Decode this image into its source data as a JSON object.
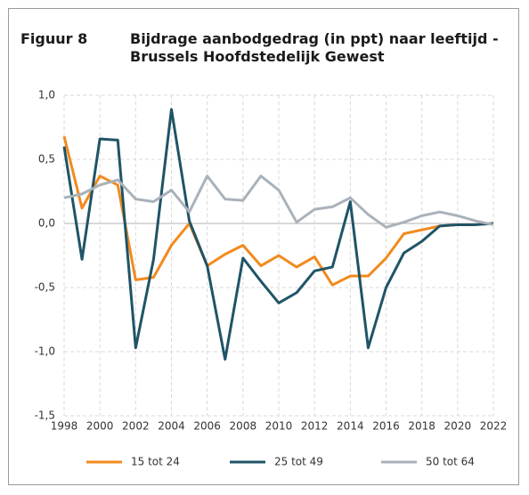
{
  "chart_data": {
    "type": "line",
    "figure_label": "Figuur 8",
    "title": "Bijdrage aanbodgedrag (in ppt) naar leeftijd - Brussels Hoofdstedelijk Gewest",
    "x": [
      1998,
      1999,
      2000,
      2001,
      2002,
      2003,
      2004,
      2005,
      2006,
      2007,
      2008,
      2009,
      2010,
      2011,
      2012,
      2013,
      2014,
      2015,
      2016,
      2017,
      2018,
      2019,
      2020,
      2021,
      2022
    ],
    "xlim": [
      1998,
      2022
    ],
    "xticks": [
      1998,
      2000,
      2002,
      2004,
      2006,
      2008,
      2010,
      2012,
      2014,
      2016,
      2018,
      2020,
      2022
    ],
    "ylim": [
      -1.5,
      1.0
    ],
    "yticks": [
      {
        "value": -1.5,
        "label": "-1,5"
      },
      {
        "value": -1.0,
        "label": "-1,0"
      },
      {
        "value": -0.5,
        "label": "-0,5"
      },
      {
        "value": 0,
        "label": "0,0"
      },
      {
        "value": 0.5,
        "label": "0,5"
      },
      {
        "value": 1.0,
        "label": "1,0"
      }
    ],
    "grid": true,
    "legend": "bottom",
    "series": [
      {
        "name": "15 tot 24",
        "color": "#f28a1e",
        "values": [
          0.68,
          0.12,
          0.37,
          0.3,
          -0.44,
          -0.42,
          -0.17,
          0.0,
          -0.33,
          -0.24,
          -0.17,
          -0.33,
          -0.25,
          -0.34,
          -0.26,
          -0.48,
          -0.41,
          -0.41,
          -0.27,
          -0.08,
          -0.05,
          -0.02,
          -0.01,
          -0.01,
          0.0
        ]
      },
      {
        "name": "25 tot 49",
        "color": "#1f5466",
        "values": [
          0.6,
          -0.28,
          0.66,
          0.65,
          -0.97,
          -0.28,
          0.89,
          0.02,
          -0.33,
          -1.06,
          -0.27,
          -0.45,
          -0.62,
          -0.54,
          -0.37,
          -0.34,
          0.17,
          -0.97,
          -0.5,
          -0.23,
          -0.14,
          -0.02,
          -0.01,
          -0.01,
          0.0
        ]
      },
      {
        "name": "50 tot 64",
        "color": "#a9b2bb",
        "values": [
          0.2,
          0.23,
          0.3,
          0.34,
          0.19,
          0.17,
          0.26,
          0.09,
          0.37,
          0.19,
          0.18,
          0.37,
          0.26,
          0.01,
          0.11,
          0.13,
          0.2,
          0.07,
          -0.03,
          0.01,
          0.06,
          0.09,
          0.06,
          0.02,
          -0.01
        ]
      }
    ]
  }
}
